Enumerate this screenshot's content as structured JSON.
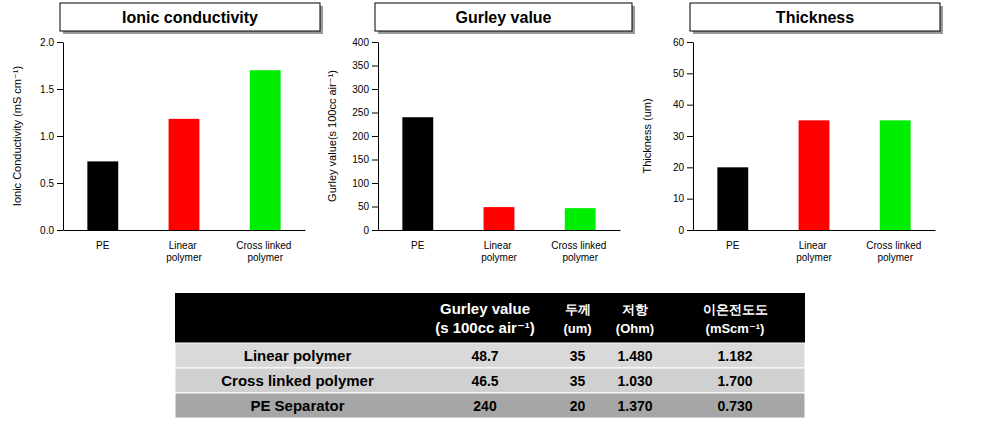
{
  "chart_data": [
    {
      "type": "bar",
      "title": "Ionic conductivity",
      "ylabel": "Ionic Conductivity (mS cm⁻¹)",
      "categories": [
        "PE",
        "Linear polymer",
        "Cross linked polymer"
      ],
      "values": [
        0.73,
        1.182,
        1.7
      ],
      "colors": [
        "#000000",
        "#ff0000",
        "#00ee00"
      ],
      "ylim": [
        0,
        2
      ],
      "yticks": [
        {
          "value": 0,
          "label": "0.0"
        },
        0.5,
        {
          "value": 1,
          "label": "1.0"
        },
        1.5,
        {
          "value": 2,
          "label": "2.0"
        }
      ],
      "grid": false
    },
    {
      "type": "bar",
      "title": "Gurley value",
      "ylabel": "Gurley value(s 100cc air⁻¹)",
      "categories": [
        "PE",
        "Linear polymer",
        "Cross linked polymer"
      ],
      "values": [
        240,
        48.7,
        46.5
      ],
      "colors": [
        "#000000",
        "#ff0000",
        "#00ee00"
      ],
      "ylim": [
        0,
        400
      ],
      "yticks": [
        0,
        50,
        100,
        150,
        200,
        250,
        300,
        350,
        400
      ],
      "grid": false
    },
    {
      "type": "bar",
      "title": "Thickness",
      "ylabel": "Thickness (um)",
      "categories": [
        "PE",
        "Linear polymer",
        "Cross linked polymer"
      ],
      "values": [
        20,
        35,
        35
      ],
      "colors": [
        "#000000",
        "#ff0000",
        "#00ee00"
      ],
      "ylim": [
        0,
        60
      ],
      "yticks": [
        0,
        10,
        20,
        30,
        40,
        50,
        60
      ],
      "grid": false
    }
  ],
  "table": {
    "header": [
      [
        "Gurley value",
        "(s 100cc air⁻¹)"
      ],
      [
        "두께",
        "(um)"
      ],
      [
        "저항",
        "(Ohm)"
      ],
      [
        "이온전도도",
        "(mScm⁻¹)"
      ]
    ],
    "rows": [
      [
        "Linear polymer",
        "48.7",
        "35",
        "1.480",
        "1.182"
      ],
      [
        "Cross linked polymer",
        "46.5",
        "35",
        "1.030",
        "1.700"
      ],
      [
        "PE Separator",
        "240",
        "20",
        "1.370",
        "0.730"
      ]
    ]
  }
}
